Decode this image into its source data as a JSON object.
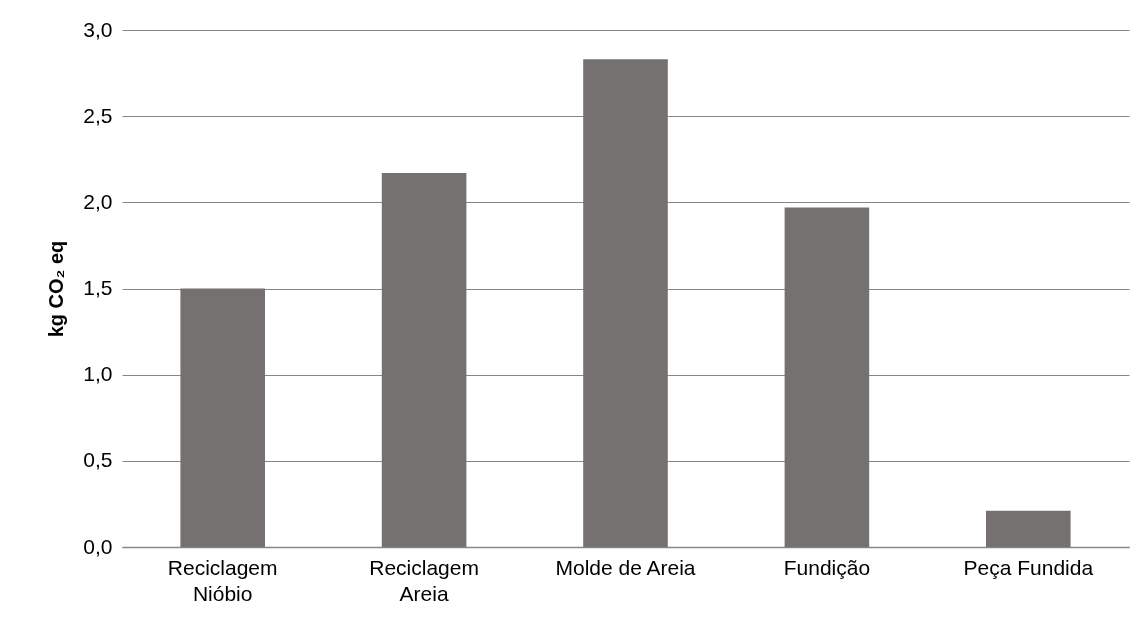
{
  "chart_data": {
    "type": "bar",
    "ylabel": "kg CO₂ eq",
    "categories": [
      "Reciclagem Nióbio",
      "Reciclagem Areia",
      "Molde de Areia",
      "Fundição",
      "Peça Fundida"
    ],
    "values": [
      1.5,
      2.17,
      2.83,
      1.97,
      0.21
    ],
    "color": "#767171",
    "ylim": [
      0,
      3
    ],
    "yticks": [
      {
        "value": 0,
        "label": "0,0"
      },
      {
        "value": 0.5,
        "label": "0,5"
      },
      {
        "value": 1,
        "label": "1,0"
      },
      {
        "value": 1.5,
        "label": "1,5"
      },
      {
        "value": 2,
        "label": "2,0"
      },
      {
        "value": 2.5,
        "label": "2,5"
      },
      {
        "value": 3,
        "label": "3,0"
      }
    ],
    "grid": "y"
  }
}
